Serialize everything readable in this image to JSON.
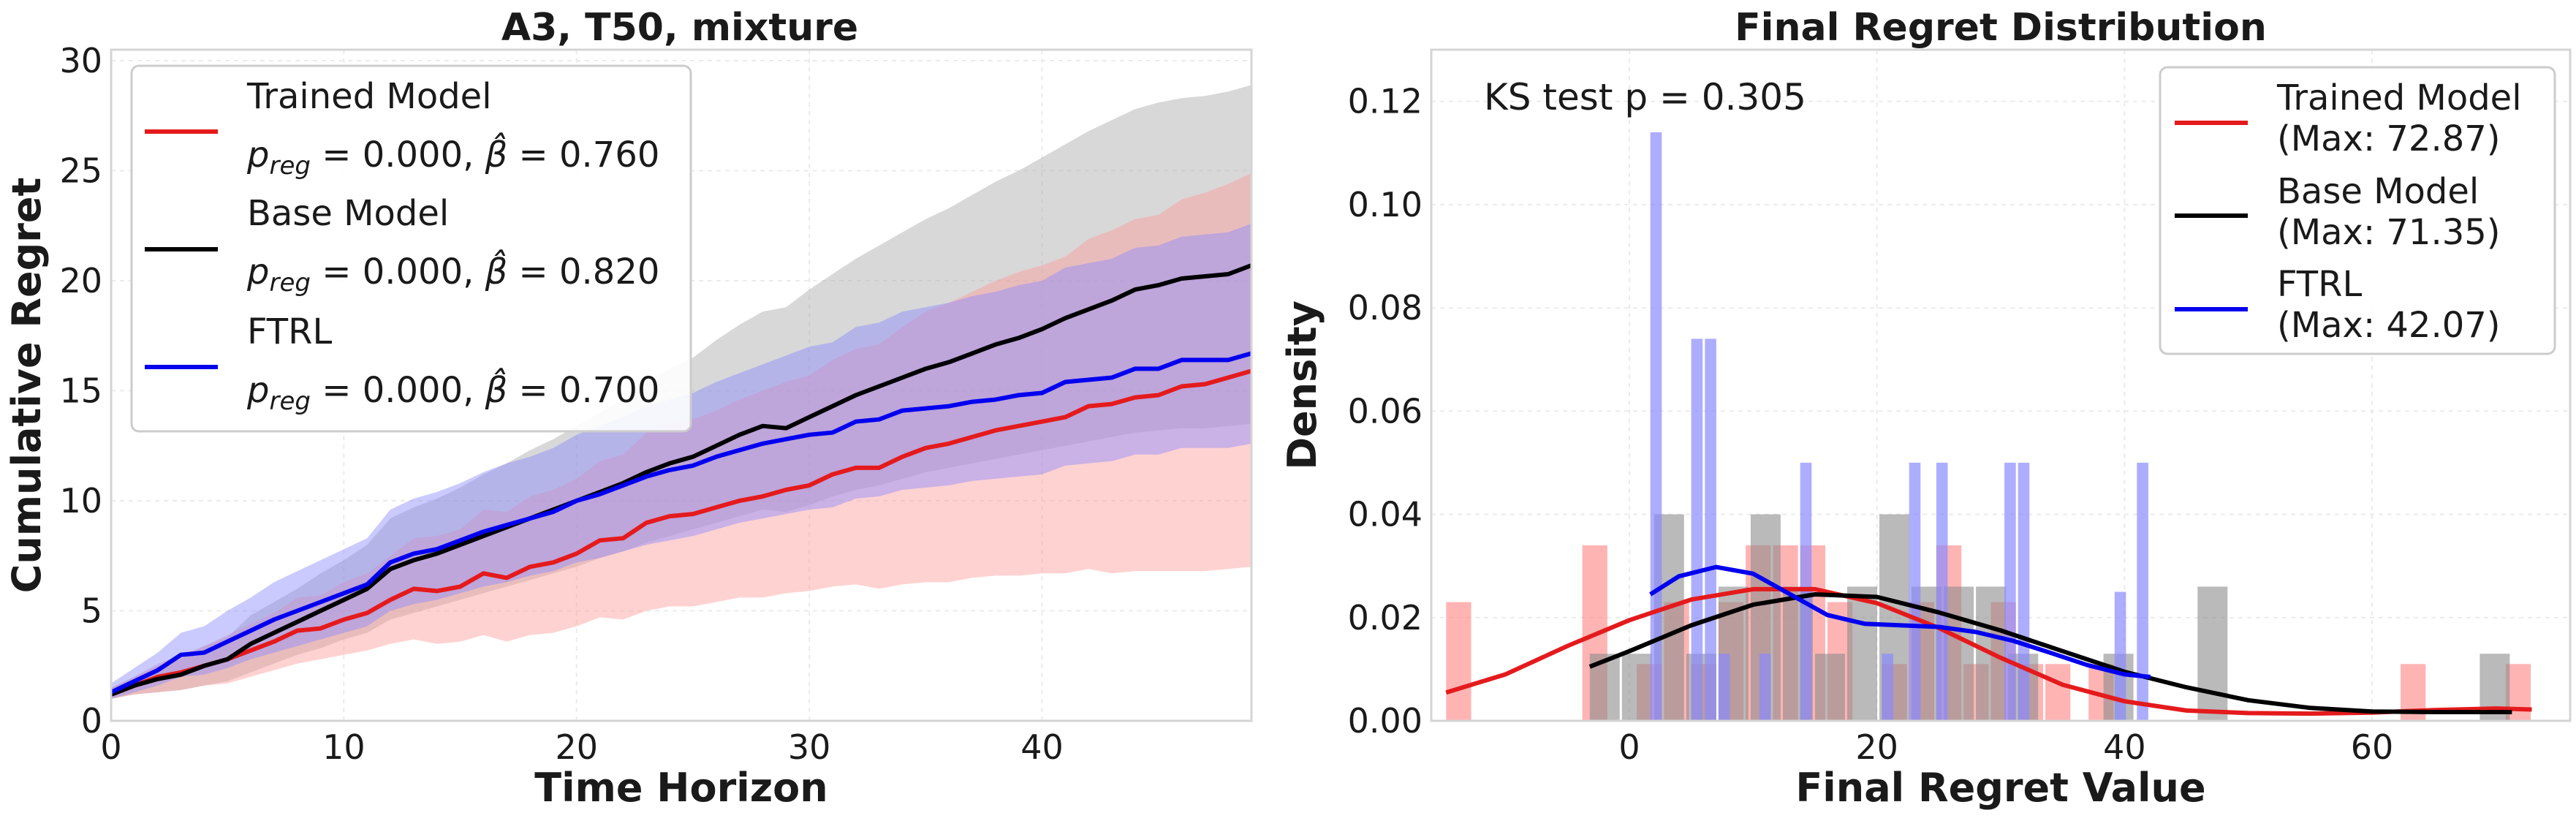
{
  "chart_data": [
    {
      "type": "line",
      "title": "A3, T50, mixture",
      "xlabel": "Time Horizon",
      "ylabel": "Cumulative Regret",
      "xlim": [
        0,
        49
      ],
      "ylim": [
        0,
        30.5
      ],
      "xticks": [
        0,
        10,
        20,
        30,
        40
      ],
      "yticks": [
        0,
        5,
        10,
        15,
        20,
        25,
        30
      ],
      "grid": true,
      "legend": "top-left",
      "x": [
        0,
        1,
        2,
        3,
        4,
        5,
        6,
        7,
        8,
        9,
        10,
        11,
        12,
        13,
        14,
        15,
        16,
        17,
        18,
        19,
        20,
        21,
        22,
        23,
        24,
        25,
        26,
        27,
        28,
        29,
        30,
        31,
        32,
        33,
        34,
        35,
        36,
        37,
        38,
        39,
        40,
        41,
        42,
        43,
        44,
        45,
        46,
        47,
        48,
        49
      ],
      "series": [
        {
          "name": "Trained Model",
          "stat": "p_reg = 0.000, β̂ = 0.760",
          "color": "#e41a1c",
          "band_color": "#ff9c9c",
          "values": [
            1.2,
            1.6,
            2.0,
            2.2,
            2.5,
            2.8,
            3.2,
            3.6,
            4.1,
            4.2,
            4.6,
            4.9,
            5.5,
            6.0,
            5.9,
            6.1,
            6.7,
            6.5,
            7.0,
            7.2,
            7.6,
            8.2,
            8.3,
            9.0,
            9.3,
            9.4,
            9.7,
            10.0,
            10.2,
            10.5,
            10.7,
            11.2,
            11.5,
            11.5,
            12.0,
            12.4,
            12.6,
            12.9,
            13.2,
            13.4,
            13.6,
            13.8,
            14.3,
            14.4,
            14.7,
            14.8,
            15.2,
            15.3,
            15.6,
            15.9
          ],
          "lower": [
            1.0,
            1.2,
            1.3,
            1.4,
            1.6,
            1.7,
            2.0,
            2.3,
            2.6,
            2.8,
            3.0,
            3.2,
            3.5,
            3.7,
            3.5,
            3.6,
            3.9,
            3.6,
            3.9,
            4.0,
            4.3,
            4.7,
            4.6,
            5.0,
            5.2,
            5.2,
            5.4,
            5.6,
            5.6,
            5.8,
            5.9,
            6.1,
            6.2,
            6.0,
            6.2,
            6.3,
            6.3,
            6.5,
            6.6,
            6.6,
            6.7,
            6.7,
            6.9,
            6.7,
            6.8,
            6.8,
            6.8,
            6.8,
            6.9,
            7.0
          ],
          "upper": [
            1.5,
            2.0,
            2.6,
            3.0,
            3.4,
            3.9,
            4.4,
            4.9,
            5.6,
            5.7,
            6.3,
            6.7,
            7.5,
            8.3,
            8.4,
            8.7,
            9.6,
            9.5,
            10.2,
            10.5,
            11.0,
            11.8,
            12.1,
            13.1,
            13.5,
            13.7,
            14.1,
            14.6,
            15.0,
            15.4,
            15.7,
            16.4,
            16.9,
            17.1,
            17.9,
            18.6,
            19.0,
            19.5,
            20.0,
            20.4,
            20.7,
            21.1,
            21.9,
            22.3,
            22.8,
            23.0,
            23.7,
            24.0,
            24.4,
            24.9
          ]
        },
        {
          "name": "Base Model",
          "stat": "p_reg = 0.000, β̂ = 0.820",
          "color": "#000000",
          "band_color": "#a8a8a8",
          "values": [
            1.2,
            1.6,
            1.9,
            2.1,
            2.5,
            2.8,
            3.5,
            4.0,
            4.5,
            5.0,
            5.5,
            6.0,
            6.9,
            7.3,
            7.6,
            8.0,
            8.4,
            8.8,
            9.2,
            9.6,
            10.0,
            10.4,
            10.8,
            11.3,
            11.7,
            12.0,
            12.5,
            13.0,
            13.4,
            13.3,
            13.8,
            14.3,
            14.8,
            15.2,
            15.6,
            16.0,
            16.3,
            16.7,
            17.1,
            17.4,
            17.8,
            18.3,
            18.7,
            19.1,
            19.6,
            19.8,
            20.1,
            20.2,
            20.3,
            20.7
          ],
          "lower": [
            1.0,
            1.2,
            1.3,
            1.4,
            1.6,
            1.8,
            2.2,
            2.6,
            3.0,
            3.3,
            3.7,
            4.0,
            4.6,
            4.9,
            5.2,
            5.5,
            5.8,
            6.1,
            6.4,
            6.7,
            7.0,
            7.4,
            7.7,
            8.1,
            8.4,
            8.7,
            9.0,
            9.3,
            9.6,
            9.5,
            9.8,
            10.2,
            10.5,
            10.7,
            11.0,
            11.3,
            11.5,
            11.7,
            11.9,
            12.1,
            12.3,
            12.5,
            12.7,
            12.9,
            13.1,
            13.2,
            13.3,
            13.3,
            13.4,
            13.5
          ],
          "upper": [
            1.5,
            2.0,
            2.5,
            2.8,
            3.4,
            3.8,
            4.8,
            5.4,
            6.0,
            6.7,
            7.3,
            8.0,
            9.2,
            9.7,
            10.1,
            10.6,
            11.2,
            11.7,
            12.3,
            12.8,
            13.4,
            14.0,
            14.6,
            15.4,
            16.0,
            16.5,
            17.3,
            18.0,
            18.6,
            18.8,
            19.6,
            20.3,
            21.0,
            21.6,
            22.2,
            22.8,
            23.3,
            23.9,
            24.5,
            25.0,
            25.6,
            26.2,
            26.8,
            27.3,
            27.8,
            28.1,
            28.3,
            28.4,
            28.6,
            28.9
          ]
        },
        {
          "name": "FTRL",
          "stat": "p_reg = 0.000, β̂ = 0.700",
          "color": "#0000ee",
          "band_color": "#8a8aff",
          "values": [
            1.3,
            1.8,
            2.3,
            3.0,
            3.1,
            3.6,
            4.1,
            4.6,
            5.0,
            5.4,
            5.8,
            6.2,
            7.2,
            7.6,
            7.8,
            8.2,
            8.6,
            8.9,
            9.2,
            9.5,
            10.0,
            10.3,
            10.7,
            11.1,
            11.4,
            11.6,
            12.0,
            12.3,
            12.6,
            12.8,
            13.0,
            13.1,
            13.6,
            13.7,
            14.1,
            14.2,
            14.3,
            14.5,
            14.6,
            14.8,
            14.9,
            15.4,
            15.5,
            15.6,
            16.0,
            16.0,
            16.4,
            16.4,
            16.4,
            16.7
          ],
          "lower": [
            1.0,
            1.3,
            1.6,
            2.0,
            2.1,
            2.4,
            2.8,
            3.1,
            3.4,
            3.7,
            4.0,
            4.3,
            5.0,
            5.3,
            5.5,
            5.8,
            6.1,
            6.3,
            6.6,
            6.8,
            7.2,
            7.4,
            7.7,
            8.0,
            8.2,
            8.4,
            8.7,
            9.0,
            9.2,
            9.4,
            9.6,
            9.7,
            10.1,
            10.2,
            10.5,
            10.6,
            10.7,
            10.9,
            11.0,
            11.1,
            11.2,
            11.6,
            11.7,
            11.8,
            12.1,
            12.1,
            12.4,
            12.4,
            12.4,
            12.6
          ],
          "upper": [
            1.7,
            2.4,
            3.1,
            4.0,
            4.3,
            5.0,
            5.6,
            6.3,
            6.8,
            7.3,
            7.8,
            8.3,
            9.6,
            10.1,
            10.4,
            10.8,
            11.3,
            11.7,
            12.0,
            12.4,
            13.0,
            13.4,
            13.8,
            14.3,
            14.6,
            14.9,
            15.4,
            15.8,
            16.2,
            16.6,
            17.0,
            17.2,
            17.9,
            18.1,
            18.6,
            18.8,
            19.0,
            19.3,
            19.5,
            19.8,
            20.0,
            20.6,
            20.8,
            21.0,
            21.5,
            21.6,
            22.0,
            22.1,
            22.2,
            22.6
          ]
        }
      ]
    },
    {
      "type": "histogram",
      "title": "Final Regret Distribution",
      "xlabel": "Final Regret Value",
      "ylabel": "Density",
      "xlim": [
        -16,
        76
      ],
      "ylim": [
        0,
        0.13
      ],
      "xticks": [
        0,
        20,
        40,
        60
      ],
      "yticks": [
        0.0,
        0.02,
        0.04,
        0.06,
        0.08,
        0.1,
        0.12
      ],
      "annotation": "KS test p = 0.305",
      "grid": true,
      "legend": "top-right",
      "series": [
        {
          "name": "Trained Model",
          "max_label": "(Max: 72.87)",
          "color": "#e41a1c",
          "bar_color": "#ff8c8c",
          "bar_opacity": 0.65,
          "bins": [
            [
              -14.8,
              -12.6,
              0.023
            ],
            [
              -12.6,
              -10.4,
              0.0
            ],
            [
              -3.8,
              -1.6,
              0.034
            ],
            [
              -1.6,
              0.6,
              0.0
            ],
            [
              0.6,
              2.8,
              0.011
            ],
            [
              2.8,
              5.0,
              0.023
            ],
            [
              5.0,
              7.2,
              0.011
            ],
            [
              7.2,
              9.4,
              0.023
            ],
            [
              9.4,
              11.6,
              0.034
            ],
            [
              11.6,
              13.8,
              0.034
            ],
            [
              13.8,
              16.0,
              0.034
            ],
            [
              16.0,
              18.2,
              0.023
            ],
            [
              18.2,
              20.4,
              0.0
            ],
            [
              20.4,
              22.6,
              0.011
            ],
            [
              22.6,
              24.8,
              0.023
            ],
            [
              24.8,
              27.0,
              0.034
            ],
            [
              27.0,
              29.2,
              0.011
            ],
            [
              29.2,
              31.4,
              0.023
            ],
            [
              31.4,
              33.6,
              0.011
            ],
            [
              33.6,
              35.8,
              0.011
            ],
            [
              37.1,
              39.3,
              0.011
            ],
            [
              62.3,
              64.5,
              0.011
            ],
            [
              70.8,
              73.0,
              0.011
            ]
          ],
          "kde": [
            [
              -14.8,
              0.0055
            ],
            [
              -10,
              0.009
            ],
            [
              -5,
              0.0145
            ],
            [
              0,
              0.0195
            ],
            [
              5,
              0.0235
            ],
            [
              10,
              0.0255
            ],
            [
              15,
              0.0255
            ],
            [
              20,
              0.0228
            ],
            [
              25,
              0.018
            ],
            [
              30,
              0.0122
            ],
            [
              35,
              0.007
            ],
            [
              40,
              0.0038
            ],
            [
              45,
              0.002
            ],
            [
              50,
              0.0015
            ],
            [
              55,
              0.0014
            ],
            [
              60,
              0.0016
            ],
            [
              65,
              0.0021
            ],
            [
              70,
              0.0024
            ],
            [
              72.9,
              0.0022
            ]
          ]
        },
        {
          "name": "Base Model",
          "max_label": "(Max: 71.35)",
          "color": "#000000",
          "bar_color": "#8c8c8c",
          "bar_opacity": 0.6,
          "bins": [
            [
              -3.2,
              -0.6,
              0.013
            ],
            [
              -0.6,
              2.0,
              0.013
            ],
            [
              2.0,
              4.6,
              0.04
            ],
            [
              4.6,
              7.2,
              0.013
            ],
            [
              7.2,
              9.8,
              0.026
            ],
            [
              9.8,
              12.4,
              0.04
            ],
            [
              12.4,
              15.0,
              0.026
            ],
            [
              15.0,
              17.6,
              0.013
            ],
            [
              17.6,
              20.2,
              0.026
            ],
            [
              20.2,
              22.8,
              0.04
            ],
            [
              22.8,
              25.4,
              0.026
            ],
            [
              25.4,
              28.0,
              0.026
            ],
            [
              28.0,
              30.6,
              0.026
            ],
            [
              30.6,
              33.2,
              0.013
            ],
            [
              38.3,
              40.9,
              0.013
            ],
            [
              45.9,
              48.5,
              0.026
            ],
            [
              68.7,
              71.3,
              0.013
            ]
          ],
          "kde": [
            [
              -3.2,
              0.0105
            ],
            [
              0,
              0.0135
            ],
            [
              5,
              0.0185
            ],
            [
              10,
              0.0225
            ],
            [
              15,
              0.0245
            ],
            [
              20,
              0.024
            ],
            [
              25,
              0.021
            ],
            [
              30,
              0.0175
            ],
            [
              35,
              0.0135
            ],
            [
              40,
              0.0095
            ],
            [
              45,
              0.0065
            ],
            [
              50,
              0.004
            ],
            [
              55,
              0.0025
            ],
            [
              60,
              0.0018
            ],
            [
              65,
              0.0017
            ],
            [
              70,
              0.0017
            ],
            [
              71.3,
              0.0017
            ]
          ]
        },
        {
          "name": "FTRL",
          "max_label": "(Max: 42.07)",
          "color": "#0000ee",
          "bar_color": "#8a8aff",
          "bar_opacity": 0.7,
          "bins": [
            [
              1.7,
              2.8,
              0.114
            ],
            [
              2.8,
              3.9,
              0.0
            ],
            [
              5.0,
              6.1,
              0.074
            ],
            [
              6.1,
              7.2,
              0.074
            ],
            [
              7.2,
              8.3,
              0.013
            ],
            [
              10.5,
              11.6,
              0.013
            ],
            [
              11.6,
              12.7,
              0.0
            ],
            [
              13.8,
              14.9,
              0.05
            ],
            [
              20.4,
              21.5,
              0.013
            ],
            [
              22.6,
              23.7,
              0.05
            ],
            [
              24.8,
              25.9,
              0.05
            ],
            [
              30.3,
              31.4,
              0.05
            ],
            [
              31.4,
              32.5,
              0.05
            ],
            [
              39.2,
              40.3,
              0.025
            ],
            [
              41.0,
              42.1,
              0.05
            ]
          ],
          "kde": [
            [
              1.7,
              0.0245
            ],
            [
              4,
              0.028
            ],
            [
              7,
              0.0298
            ],
            [
              10,
              0.0285
            ],
            [
              13,
              0.0245
            ],
            [
              16,
              0.0205
            ],
            [
              19,
              0.0188
            ],
            [
              22,
              0.0185
            ],
            [
              25,
              0.0182
            ],
            [
              28,
              0.0172
            ],
            [
              31,
              0.0155
            ],
            [
              34,
              0.0132
            ],
            [
              37,
              0.0108
            ],
            [
              40,
              0.009
            ],
            [
              42.1,
              0.0085
            ]
          ]
        }
      ]
    }
  ]
}
